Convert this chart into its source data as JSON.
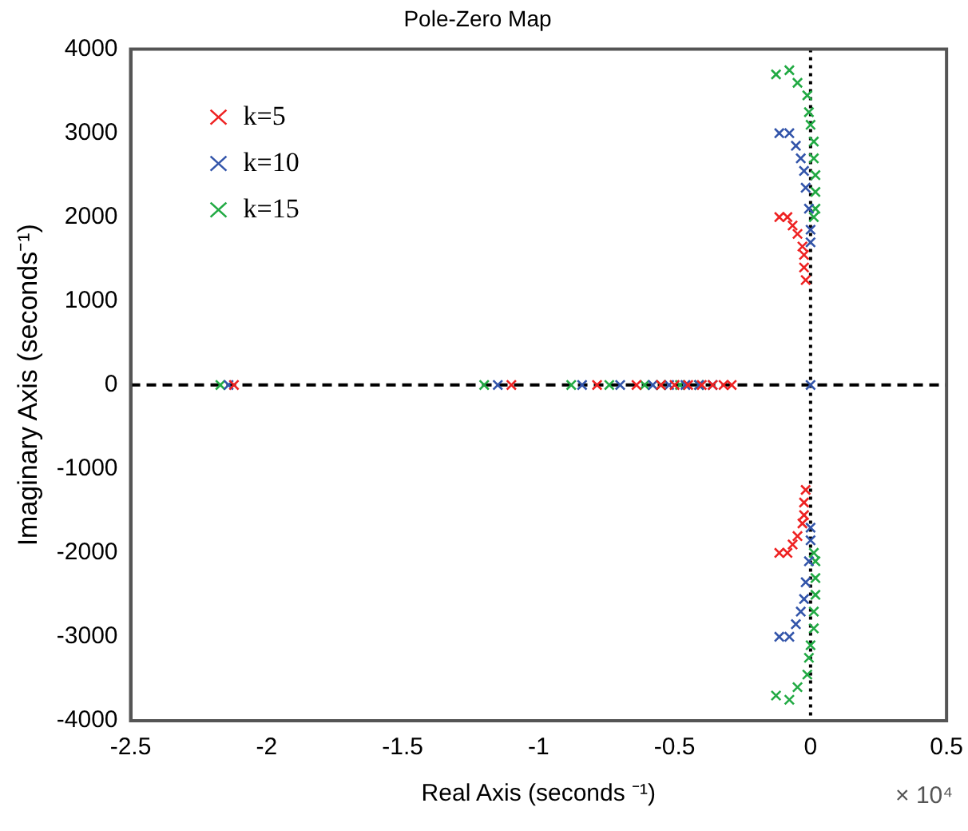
{
  "chart_data": {
    "type": "scatter",
    "title": "Pole-Zero Map",
    "xlabel": "Real Axis (seconds ⁻¹)",
    "ylabel": "Imaginary Axis (seconds⁻¹)",
    "annotations": [
      "× 10⁴"
    ],
    "xlim": [
      -2.5,
      0.5
    ],
    "xticks": [
      -2.5,
      -2,
      -1.5,
      -1,
      -0.5,
      0,
      0.5
    ],
    "ylim": [
      -4000,
      4000
    ],
    "yticks": [
      -4000,
      -3000,
      -2000,
      -1000,
      0,
      1000,
      2000,
      3000,
      4000
    ],
    "grid": false,
    "legend": "top left",
    "marker": "cross",
    "ref_lines": [
      {
        "axis": "x",
        "value": 0,
        "color": "#000000",
        "line_style": "dotted"
      },
      {
        "axis": "y",
        "value": 0,
        "color": "#000000",
        "line_style": "dashed"
      }
    ],
    "series": [
      {
        "name": "k=5",
        "color": "#ee2222",
        "x": [
          -2.12,
          -1.1,
          -0.785,
          -0.64,
          -0.55,
          -0.5,
          -0.45,
          -0.4,
          -0.36,
          -0.32,
          -0.29,
          -0.115,
          -0.085,
          -0.066,
          -0.048,
          -0.03,
          -0.024,
          -0.024,
          -0.018,
          -0.115,
          -0.085,
          -0.066,
          -0.048,
          -0.03,
          -0.024,
          -0.024,
          -0.018
        ],
        "values": [
          0,
          0,
          0,
          0,
          0,
          0,
          0,
          0,
          0,
          0,
          0,
          2000,
          2000,
          1900,
          1800,
          1650,
          1550,
          1400,
          1250,
          -2000,
          -2000,
          -1900,
          -1800,
          -1650,
          -1550,
          -1400,
          -1250
        ]
      },
      {
        "name": "k=10",
        "color": "#3355aa",
        "x": [
          -2.14,
          -1.15,
          -0.84,
          -0.7,
          -0.58,
          -0.52,
          -0.46,
          -0.41,
          -0.36,
          0,
          -0.115,
          -0.078,
          -0.054,
          -0.036,
          -0.024,
          -0.018,
          -0.006,
          0,
          0,
          -0.115,
          -0.078,
          -0.054,
          -0.036,
          -0.024,
          -0.018,
          -0.006,
          0,
          0
        ],
        "values": [
          0,
          0,
          0,
          0,
          0,
          0,
          0,
          0,
          0,
          0,
          3000,
          3000,
          2850,
          2700,
          2550,
          2350,
          2100,
          1850,
          1700,
          -3000,
          -3000,
          -2850,
          -2700,
          -2550,
          -2350,
          -2100,
          -1850,
          -1700
        ]
      },
      {
        "name": "k=15",
        "color": "#22aa44",
        "x": [
          -2.17,
          -1.2,
          -0.88,
          -0.74,
          -0.61,
          -0.55,
          -0.48,
          -0.41,
          -0.127,
          -0.078,
          -0.048,
          -0.012,
          -0.006,
          0,
          0.012,
          0.012,
          0.018,
          0.018,
          0.018,
          0.012,
          -0.127,
          -0.078,
          -0.048,
          -0.012,
          -0.006,
          0,
          0.012,
          0.012,
          0.018,
          0.018,
          0.018,
          0.012
        ],
        "values": [
          0,
          0,
          0,
          0,
          0,
          0,
          0,
          0,
          3700,
          3750,
          3600,
          3450,
          3250,
          3100,
          2900,
          2700,
          2500,
          2300,
          2100,
          2000,
          -3700,
          -3750,
          -3600,
          -3450,
          -3250,
          -3100,
          -2900,
          -2700,
          -2500,
          -2300,
          -2100,
          -2000
        ]
      }
    ]
  }
}
